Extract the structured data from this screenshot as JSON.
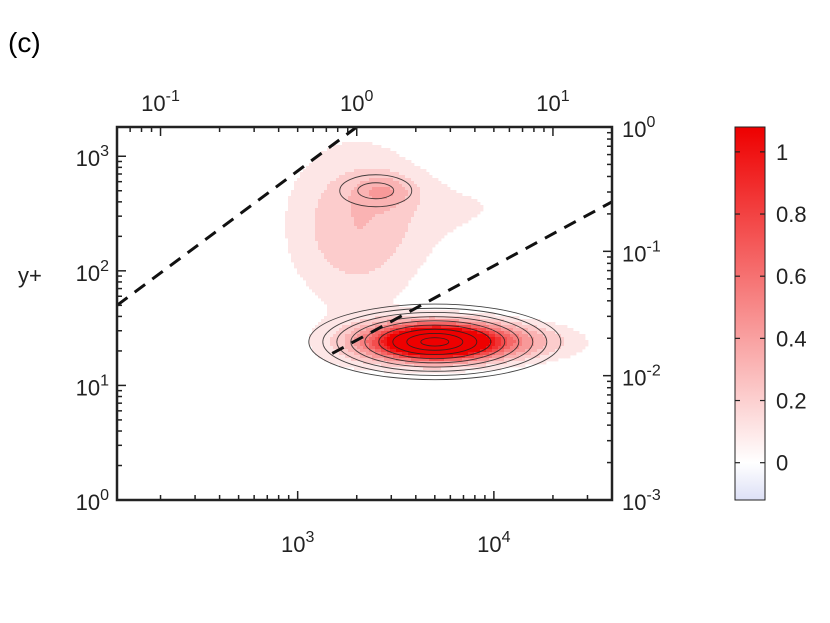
{
  "panel_label": "(c)",
  "chart_data": {
    "type": "heatmap",
    "subtype": "filled-contour",
    "scale": "log-log",
    "xlabel": "",
    "ylabel": "y+",
    "bottom_axis": {
      "ticks": [
        {
          "base": "10",
          "exp": "3",
          "value": 1000
        },
        {
          "base": "10",
          "exp": "4",
          "value": 10000
        }
      ],
      "range": [
        120,
        40000
      ]
    },
    "top_axis": {
      "ticks": [
        {
          "base": "10",
          "exp": "-1",
          "value": 0.1
        },
        {
          "base": "10",
          "exp": "0",
          "value": 1
        },
        {
          "base": "10",
          "exp": "1",
          "value": 10
        }
      ],
      "range": [
        0.06,
        20
      ]
    },
    "left_axis": {
      "label": "y+",
      "ticks": [
        {
          "base": "10",
          "exp": "0",
          "value": 1
        },
        {
          "base": "10",
          "exp": "1",
          "value": 10
        },
        {
          "base": "10",
          "exp": "2",
          "value": 100
        },
        {
          "base": "10",
          "exp": "3",
          "value": 1000
        }
      ],
      "range": [
        1,
        1800
      ]
    },
    "right_axis": {
      "ticks": [
        {
          "base": "10",
          "exp": "0",
          "value": 1
        },
        {
          "base": "10",
          "exp": "-1",
          "value": 0.1
        },
        {
          "base": "10",
          "exp": "-2",
          "value": 0.01
        },
        {
          "base": "10",
          "exp": "-3",
          "value": 0.001
        }
      ],
      "range": [
        0.001,
        1
      ]
    },
    "colorbar": {
      "range": [
        -0.12,
        1.08
      ],
      "ticks": [
        "0",
        "0.2",
        "0.4",
        "0.6",
        "0.8",
        "1"
      ],
      "tick_values": [
        0,
        0.2,
        0.4,
        0.6,
        0.8,
        1.0
      ],
      "colors": {
        "low": "#dde0f6",
        "zero": "#ffffff",
        "high": "#ee0000"
      }
    },
    "contour_levels": [
      0.1,
      0.2,
      0.3,
      0.4,
      0.5,
      0.6,
      0.7,
      0.8,
      0.9,
      1.0
    ],
    "peaks": [
      {
        "x": 5000,
        "y": 24,
        "value": 1.05
      },
      {
        "x": 2500,
        "y": 500,
        "value": 0.25
      }
    ],
    "reference_lines": [
      {
        "style": "dashed",
        "points": [
          [
            120,
            50
          ],
          [
            2000,
            1800
          ]
        ]
      },
      {
        "style": "dashed",
        "points": [
          [
            1500,
            19
          ],
          [
            40000,
            400
          ]
        ]
      }
    ],
    "grid": false,
    "legend": "none"
  }
}
